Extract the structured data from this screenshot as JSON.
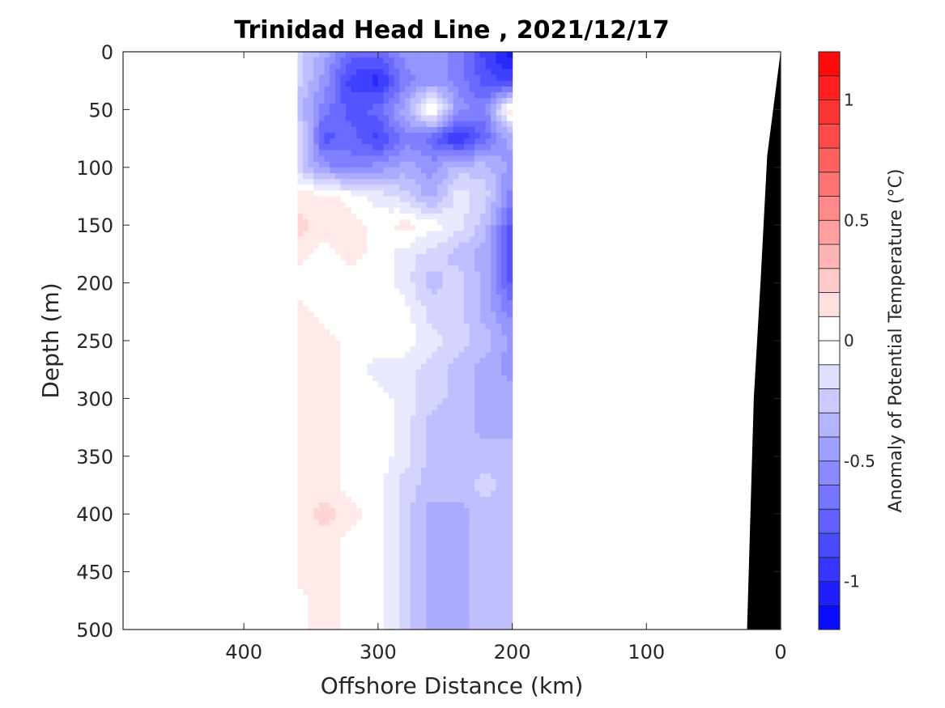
{
  "chart_data": {
    "type": "heatmap",
    "title": "Trinidad Head Line , 2021/12/17",
    "xlabel": "Offshore Distance (km)",
    "ylabel": "Depth (m)",
    "xlim": [
      490,
      0
    ],
    "ylim": [
      0,
      500
    ],
    "x_direction": "reversed",
    "y_direction": "reversed (depth increases downward)",
    "x_ticks": [
      "400",
      "300",
      "200",
      "100",
      "0"
    ],
    "x_tick_values": [
      400,
      300,
      200,
      100,
      0
    ],
    "y_ticks": [
      "0",
      "50",
      "100",
      "150",
      "200",
      "250",
      "300",
      "350",
      "400",
      "450",
      "500"
    ],
    "y_tick_values": [
      0,
      50,
      100,
      150,
      200,
      250,
      300,
      350,
      400,
      450,
      500
    ],
    "data_extent_km": [
      360,
      200
    ],
    "colorbar": {
      "label": "Anomaly of Potential Temperature (°C)",
      "range": [
        -1.2,
        1.2
      ],
      "step": 0.1,
      "ticks": [
        "1",
        "0.5",
        "0",
        "-0.5",
        "-1"
      ],
      "tick_values": [
        1,
        0.5,
        0,
        -0.5,
        -1
      ],
      "colormap": "blue-white-red",
      "neg_color": "#0000ff",
      "pos_color": "#ff0000"
    },
    "x_nodes": [
      360,
      340,
      320,
      300,
      280,
      260,
      240,
      220,
      200
    ],
    "z_nodes": [
      0,
      25,
      50,
      75,
      100,
      125,
      150,
      175,
      200,
      225,
      250,
      275,
      300,
      325,
      350,
      375,
      400,
      425,
      450,
      475,
      500
    ],
    "temperature_anomaly": [
      [
        -0.2,
        -0.4,
        -0.7,
        -0.7,
        -0.5,
        -0.5,
        -0.6,
        -0.9,
        -1.1
      ],
      [
        -0.2,
        -0.5,
        -0.9,
        -1.0,
        -0.6,
        -0.5,
        -0.6,
        -0.8,
        -0.9
      ],
      [
        -0.3,
        -0.6,
        -0.8,
        -0.7,
        -0.4,
        0.1,
        -0.5,
        -0.6,
        0.2
      ],
      [
        -0.1,
        -0.8,
        -0.7,
        -0.9,
        -0.6,
        -0.7,
        -1.0,
        -0.7,
        -0.4
      ],
      [
        -0.2,
        -0.5,
        -0.6,
        -0.5,
        -0.4,
        -0.5,
        -0.3,
        -0.3,
        -0.5
      ],
      [
        0.1,
        0.1,
        0.0,
        -0.1,
        -0.2,
        -0.4,
        -0.1,
        -0.2,
        -0.6
      ],
      [
        0.2,
        0.1,
        0.1,
        0.0,
        0.1,
        0.0,
        -0.1,
        -0.3,
        -0.8
      ],
      [
        0.1,
        0.0,
        0.1,
        0.0,
        -0.1,
        -0.2,
        -0.3,
        -0.4,
        -0.9
      ],
      [
        0.0,
        0.0,
        0.0,
        0.0,
        -0.1,
        -0.3,
        -0.2,
        -0.4,
        -0.8
      ],
      [
        0.1,
        0.0,
        0.0,
        0.0,
        0.0,
        -0.2,
        -0.2,
        -0.4,
        -0.6
      ],
      [
        0.1,
        0.1,
        0.0,
        0.0,
        0.0,
        -0.1,
        -0.2,
        -0.3,
        -0.5
      ],
      [
        0.1,
        0.1,
        0.0,
        -0.1,
        -0.1,
        -0.2,
        -0.3,
        -0.4,
        -0.5
      ],
      [
        0.1,
        0.1,
        0.0,
        0.0,
        -0.1,
        -0.2,
        -0.3,
        -0.4,
        -0.4
      ],
      [
        0.1,
        0.1,
        0.0,
        0.0,
        -0.1,
        -0.3,
        -0.3,
        -0.4,
        -0.4
      ],
      [
        0.1,
        0.1,
        0.0,
        0.0,
        -0.1,
        -0.3,
        -0.3,
        -0.3,
        -0.3
      ],
      [
        0.1,
        0.1,
        0.0,
        0.0,
        -0.2,
        -0.3,
        -0.3,
        -0.2,
        -0.3
      ],
      [
        0.1,
        0.2,
        0.1,
        0.0,
        -0.2,
        -0.4,
        -0.4,
        -0.3,
        -0.3
      ],
      [
        0.1,
        0.1,
        0.0,
        0.0,
        -0.2,
        -0.4,
        -0.4,
        -0.3,
        -0.3
      ],
      [
        0.1,
        0.1,
        0.0,
        0.0,
        -0.2,
        -0.4,
        -0.4,
        -0.3,
        -0.3
      ],
      [
        0.0,
        0.1,
        0.0,
        0.0,
        -0.2,
        -0.4,
        -0.4,
        -0.3,
        -0.3
      ],
      [
        0.0,
        0.1,
        0.0,
        0.0,
        -0.2,
        -0.4,
        -0.4,
        -0.3,
        -0.3
      ]
    ],
    "bottom_topography_km_m": [
      [
        0,
        0
      ],
      [
        10,
        90
      ],
      [
        15,
        200
      ],
      [
        20,
        300
      ],
      [
        25,
        500
      ]
    ],
    "bottom_fill": "#000000"
  }
}
